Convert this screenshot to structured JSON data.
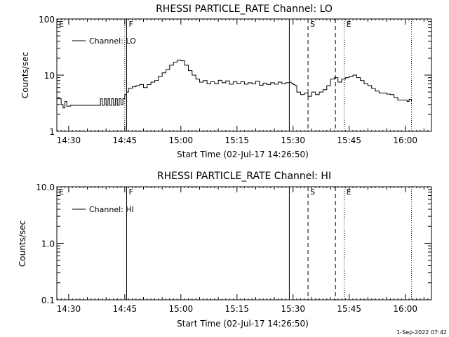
{
  "footer": {
    "timestamp": "1-Sep-2022 07:42"
  },
  "chart_data": [
    {
      "type": "line",
      "title": "RHESSI PARTICLE_RATE Channel: LO",
      "xlabel": "Start Time (02-Jul-17 14:26:50)",
      "ylabel": "Counts/sec",
      "yscale": "log",
      "ylim": [
        1,
        100
      ],
      "xlim": [
        "14:26:50",
        "16:07:00"
      ],
      "x_ticks": [
        "14:30",
        "14:45",
        "15:00",
        "15:15",
        "15:30",
        "15:45",
        "16:00"
      ],
      "y_ticks": [
        "1",
        "10",
        "100"
      ],
      "legend": {
        "entries": [
          "Channel: LO"
        ],
        "placement": "top-left"
      },
      "markers": [
        {
          "label": "E",
          "time": "14:26:50",
          "style": "dotted"
        },
        {
          "label": "F",
          "time": "14:45:30",
          "style": "solid"
        },
        {
          "label": "",
          "time": "14:45:00",
          "style": "dotted"
        },
        {
          "label": "",
          "time": "15:29:00",
          "style": "solid"
        },
        {
          "label": "S",
          "time": "15:34:00",
          "style": "dashed"
        },
        {
          "label": "",
          "time": "15:41:20",
          "style": "dashed"
        },
        {
          "label": "E",
          "time": "15:43:40",
          "style": "dotted"
        },
        {
          "label": "",
          "time": "16:01:40",
          "style": "dotted"
        }
      ],
      "series": [
        {
          "name": "Channel: LO",
          "x": [
            "14:26:50",
            "14:28:00",
            "14:28:30",
            "14:29:00",
            "14:29:30",
            "14:30:30",
            "14:31:00",
            "14:32:00",
            "14:33:00",
            "14:34:00",
            "14:35:00",
            "14:36:00",
            "14:37:00",
            "14:38:00",
            "14:38:30",
            "14:39:00",
            "14:39:30",
            "14:40:00",
            "14:40:30",
            "14:41:00",
            "14:41:30",
            "14:42:00",
            "14:42:30",
            "14:43:00",
            "14:43:30",
            "14:44:00",
            "14:44:30",
            "14:45:00",
            "14:45:30",
            "14:46:00",
            "14:47:00",
            "14:48:00",
            "14:49:00",
            "14:50:00",
            "14:51:00",
            "14:52:00",
            "14:53:00",
            "14:54:00",
            "14:55:00",
            "14:56:00",
            "14:57:00",
            "14:58:00",
            "14:59:00",
            "15:00:00",
            "15:01:00",
            "15:02:00",
            "15:03:00",
            "15:04:00",
            "15:05:00",
            "15:06:00",
            "15:07:00",
            "15:08:00",
            "15:09:00",
            "15:10:00",
            "15:11:00",
            "15:12:00",
            "15:13:00",
            "15:14:00",
            "15:15:00",
            "15:16:00",
            "15:17:00",
            "15:18:00",
            "15:19:00",
            "15:20:00",
            "15:21:00",
            "15:22:00",
            "15:23:00",
            "15:24:00",
            "15:25:00",
            "15:26:00",
            "15:27:00",
            "15:28:00",
            "15:29:00",
            "15:29:30",
            "15:30:00",
            "15:30:30",
            "15:31:00",
            "15:32:00",
            "15:33:00",
            "15:34:00",
            "15:35:00",
            "15:36:00",
            "15:37:00",
            "15:38:00",
            "15:39:00",
            "15:40:00",
            "15:41:00",
            "15:42:00",
            "15:43:00",
            "15:44:00",
            "15:45:00",
            "15:46:00",
            "15:47:00",
            "15:48:00",
            "15:49:00",
            "15:50:00",
            "15:51:00",
            "15:52:00",
            "15:53:00",
            "15:54:00",
            "15:55:00",
            "15:56:00",
            "15:57:00",
            "15:58:00",
            "15:59:00",
            "16:00:00",
            "16:00:30",
            "16:01:00",
            "16:01:40"
          ],
          "values": [
            3.8,
            3.0,
            2.6,
            3.4,
            2.8,
            2.9,
            2.9,
            2.9,
            2.9,
            2.9,
            2.9,
            2.9,
            2.9,
            2.9,
            3.8,
            2.9,
            3.8,
            2.9,
            3.8,
            2.9,
            3.8,
            2.9,
            3.8,
            2.9,
            3.8,
            3.0,
            3.8,
            4.5,
            5.0,
            5.8,
            6.2,
            6.5,
            6.8,
            6.0,
            6.8,
            7.5,
            8.0,
            9.5,
            11.0,
            12.5,
            15.0,
            17.0,
            18.5,
            18.0,
            15.0,
            12.0,
            10.0,
            8.5,
            7.5,
            8.0,
            7.0,
            7.6,
            7.0,
            8.1,
            7.3,
            7.9,
            6.9,
            7.6,
            7.1,
            7.6,
            6.9,
            7.3,
            7.0,
            7.8,
            6.6,
            7.2,
            6.8,
            7.3,
            6.9,
            7.5,
            7.0,
            7.3,
            7.5,
            7.2,
            6.8,
            6.5,
            5.0,
            4.5,
            4.8,
            4.2,
            5.0,
            4.5,
            5.0,
            5.5,
            6.5,
            8.5,
            9.0,
            7.5,
            8.5,
            9.0,
            9.5,
            10.0,
            9.0,
            8.0,
            7.0,
            6.5,
            5.8,
            5.2,
            4.8,
            4.8,
            4.6,
            4.5,
            4.0,
            3.6,
            3.6,
            3.6,
            3.4,
            3.7,
            3.4
          ]
        }
      ]
    },
    {
      "type": "line",
      "title": "RHESSI PARTICLE_RATE Channel: HI",
      "xlabel": "Start Time (02-Jul-17 14:26:50)",
      "ylabel": "Counts/sec",
      "yscale": "log",
      "ylim": [
        0.1,
        10.0
      ],
      "xlim": [
        "14:26:50",
        "16:07:00"
      ],
      "x_ticks": [
        "14:30",
        "14:45",
        "15:00",
        "15:15",
        "15:30",
        "15:45",
        "16:00"
      ],
      "y_ticks": [
        "0.1",
        "1.0",
        "10.0"
      ],
      "legend": {
        "entries": [
          "Channel: HI"
        ],
        "placement": "top-left"
      },
      "markers": [
        {
          "label": "E",
          "time": "14:26:50",
          "style": "dotted"
        },
        {
          "label": "F",
          "time": "14:45:30",
          "style": "solid"
        },
        {
          "label": "",
          "time": "15:29:00",
          "style": "solid"
        },
        {
          "label": "S",
          "time": "15:34:00",
          "style": "dashed"
        },
        {
          "label": "",
          "time": "15:41:20",
          "style": "dashed"
        },
        {
          "label": "E",
          "time": "15:43:40",
          "style": "dotted"
        },
        {
          "label": "",
          "time": "16:01:40",
          "style": "dotted"
        }
      ],
      "series": [
        {
          "name": "Channel: HI",
          "x": [],
          "values": []
        }
      ]
    }
  ]
}
